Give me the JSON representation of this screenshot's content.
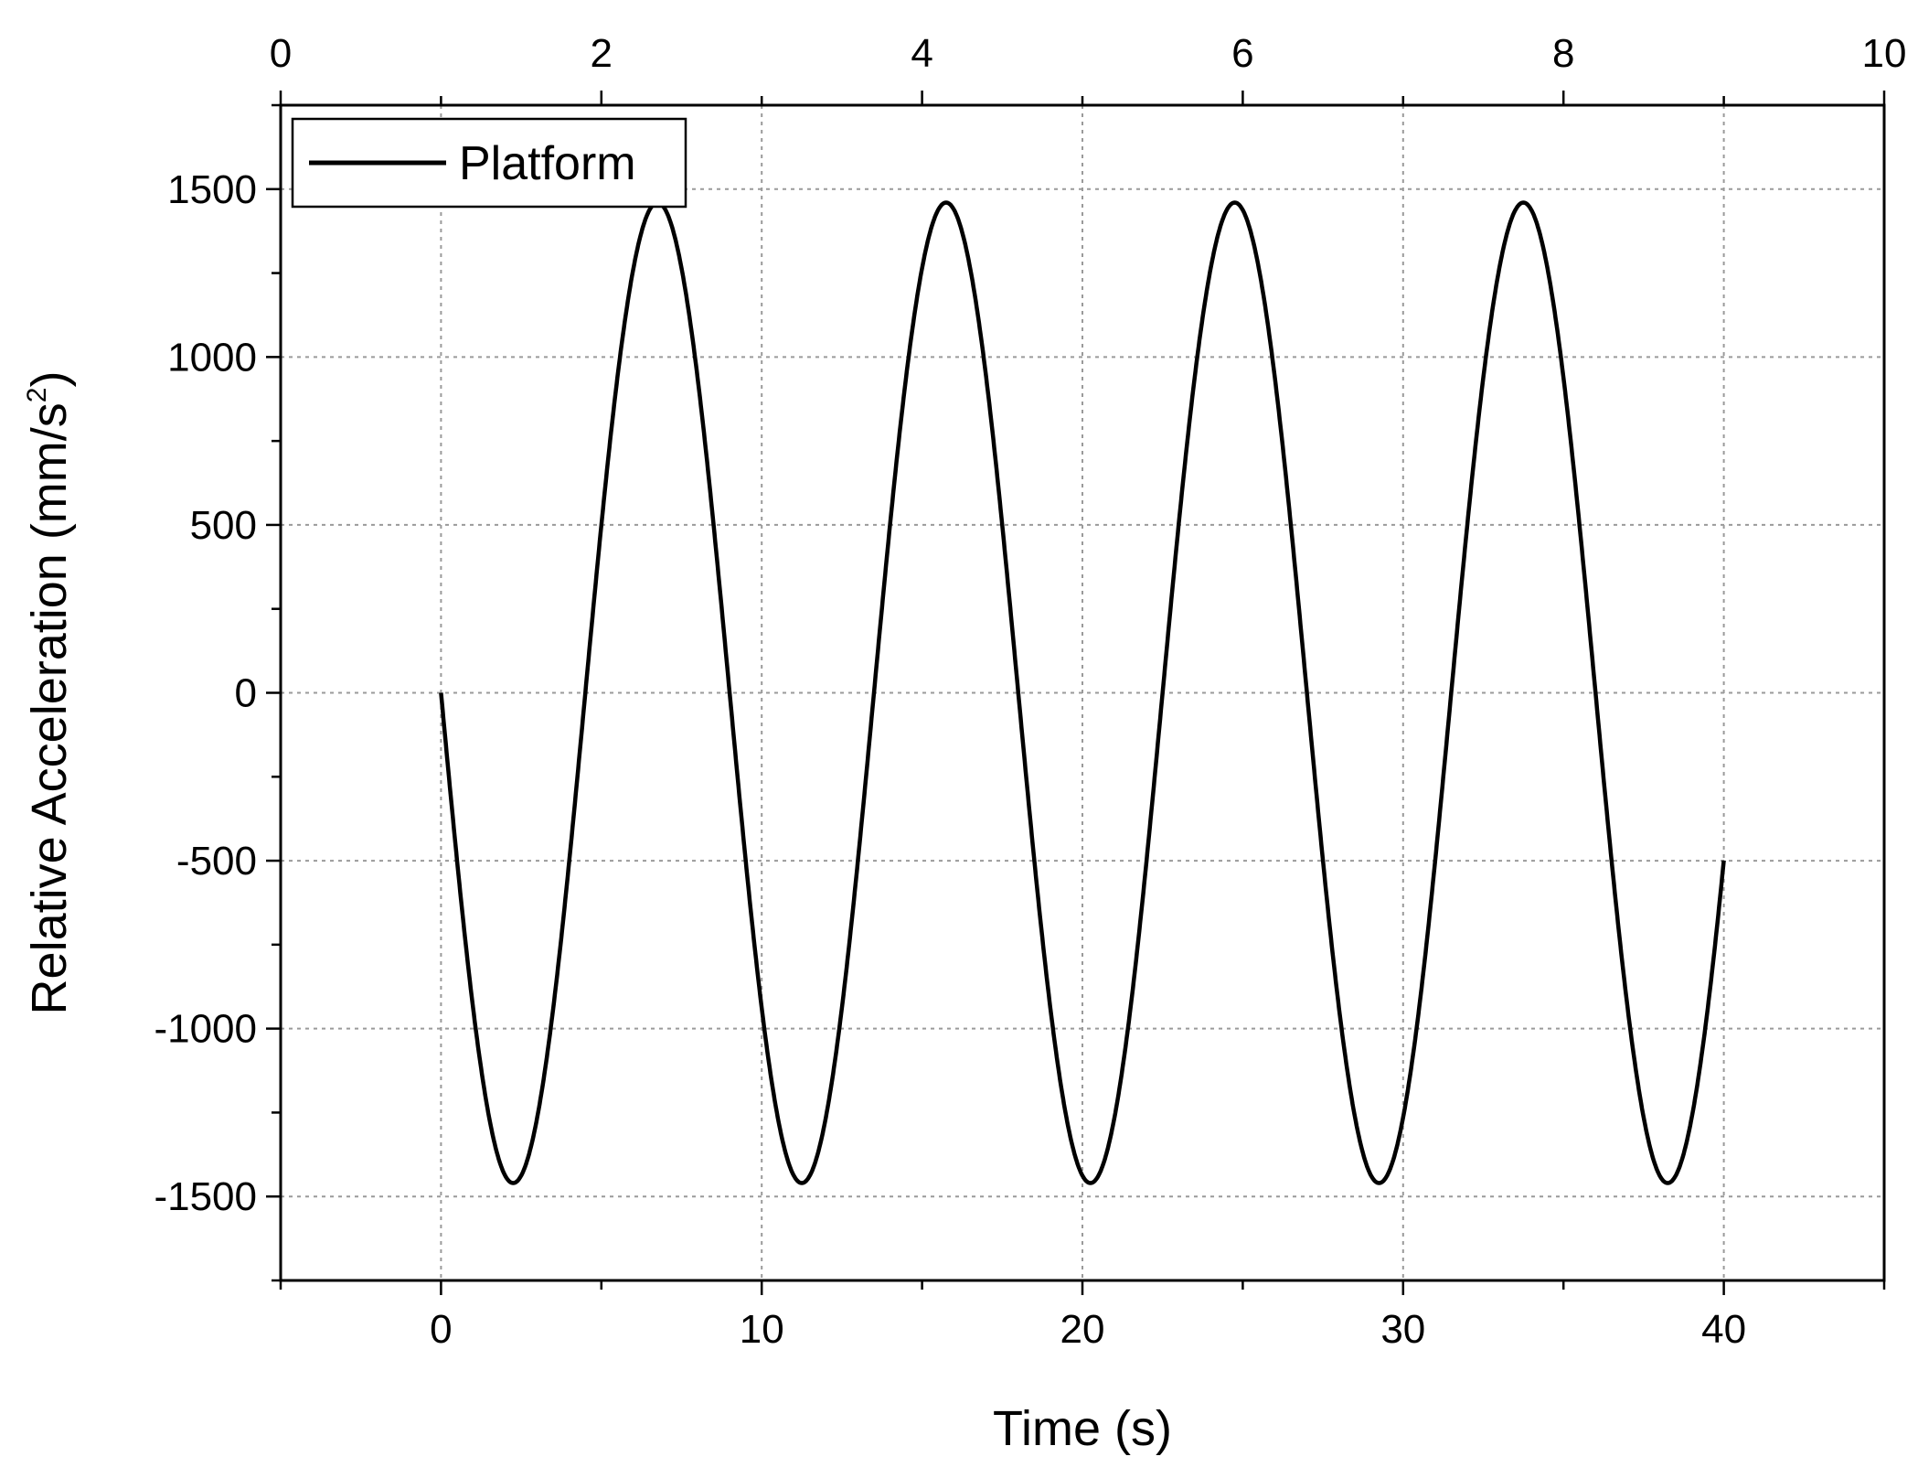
{
  "chart_data": {
    "type": "line",
    "title": "",
    "xlabel": "Time (s)",
    "ylabel_main": "Relative Acceleration (mm/s",
    "ylabel_sup": "2",
    "ylabel_close": ")",
    "xlim": [
      -5,
      45
    ],
    "ylim": [
      -1750,
      1750
    ],
    "x_ticks": [
      0,
      10,
      20,
      30,
      40
    ],
    "x_tick_labels": [
      "0",
      "10",
      "20",
      "30",
      "40"
    ],
    "y_ticks": [
      -1500,
      -1000,
      -500,
      0,
      500,
      1000,
      1500
    ],
    "y_tick_labels": [
      "-1500",
      "-1000",
      "-500",
      "0",
      "500",
      "1000",
      "1500"
    ],
    "top_axis": {
      "range": [
        0,
        10
      ],
      "ticks": [
        0,
        2,
        4,
        6,
        8,
        10
      ],
      "tick_labels": [
        "0",
        "2",
        "4",
        "6",
        "8",
        "10"
      ]
    },
    "grid": true,
    "legend": {
      "position": "top-left",
      "entries": [
        "Platform"
      ]
    },
    "series": [
      {
        "name": "Platform",
        "color": "#000000",
        "function": "y = -1460 * sin(2*pi*x/9.0)",
        "amplitude": 1460,
        "period": 9.0,
        "x_range": [
          0,
          40
        ]
      }
    ],
    "extrema": [
      {
        "x": 2.25,
        "y": -1460
      },
      {
        "x": 6.75,
        "y": 1460
      },
      {
        "x": 11.25,
        "y": -1460
      },
      {
        "x": 15.75,
        "y": 1460
      },
      {
        "x": 20.25,
        "y": -1460
      },
      {
        "x": 24.75,
        "y": 1460
      },
      {
        "x": 29.25,
        "y": -1460
      },
      {
        "x": 33.75,
        "y": 1460
      },
      {
        "x": 38.25,
        "y": -1460
      }
    ]
  }
}
